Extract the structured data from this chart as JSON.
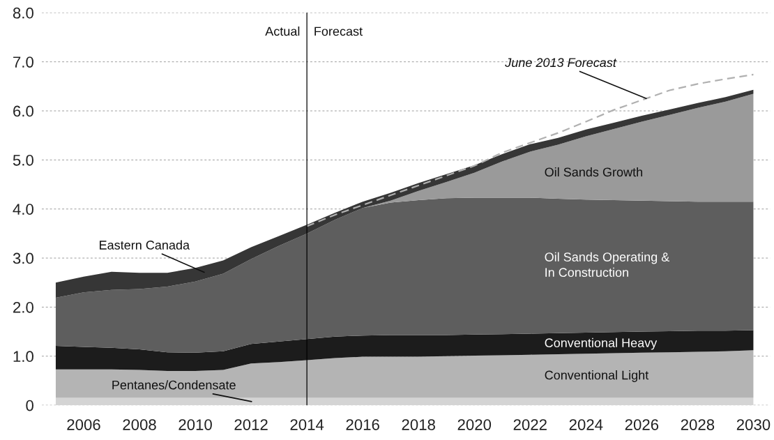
{
  "chart_data": {
    "type": "area",
    "stacked": true,
    "x": [
      2005,
      2006,
      2007,
      2008,
      2009,
      2010,
      2011,
      2012,
      2013,
      2014,
      2015,
      2016,
      2017,
      2018,
      2019,
      2020,
      2021,
      2022,
      2023,
      2024,
      2025,
      2026,
      2027,
      2028,
      2029,
      2030
    ],
    "series": [
      {
        "name": "Pentanes/Condensate",
        "color": "#d4d4d4",
        "values": [
          0.15,
          0.15,
          0.15,
          0.15,
          0.15,
          0.15,
          0.15,
          0.15,
          0.15,
          0.15,
          0.15,
          0.15,
          0.15,
          0.15,
          0.15,
          0.15,
          0.15,
          0.15,
          0.15,
          0.15,
          0.15,
          0.15,
          0.15,
          0.15,
          0.15,
          0.15
        ]
      },
      {
        "name": "Conventional Light",
        "color": "#b4b4b4",
        "values": [
          0.58,
          0.58,
          0.58,
          0.57,
          0.55,
          0.55,
          0.57,
          0.7,
          0.73,
          0.77,
          0.81,
          0.84,
          0.84,
          0.84,
          0.85,
          0.86,
          0.87,
          0.88,
          0.89,
          0.9,
          0.91,
          0.92,
          0.93,
          0.94,
          0.95,
          0.97
        ]
      },
      {
        "name": "Conventional Heavy",
        "color": "#1c1c1c",
        "values": [
          0.48,
          0.46,
          0.44,
          0.42,
          0.38,
          0.37,
          0.38,
          0.4,
          0.42,
          0.43,
          0.44,
          0.43,
          0.44,
          0.44,
          0.43,
          0.43,
          0.43,
          0.43,
          0.43,
          0.43,
          0.43,
          0.43,
          0.43,
          0.43,
          0.42,
          0.41
        ]
      },
      {
        "name": "Oil Sands Operating &\nIn Construction",
        "color": "#5e5e5e",
        "values": [
          0.98,
          1.11,
          1.18,
          1.23,
          1.34,
          1.45,
          1.58,
          1.73,
          1.95,
          2.15,
          2.38,
          2.6,
          2.7,
          2.75,
          2.79,
          2.79,
          2.78,
          2.77,
          2.74,
          2.71,
          2.69,
          2.67,
          2.65,
          2.63,
          2.63,
          2.62
        ]
      },
      {
        "name": "Oil Sands Growth",
        "color": "#9a9a9a",
        "values": [
          0,
          0,
          0,
          0,
          0,
          0,
          0,
          0,
          0,
          0,
          0,
          0,
          0.04,
          0.19,
          0.33,
          0.51,
          0.74,
          0.94,
          1.1,
          1.29,
          1.45,
          1.61,
          1.76,
          1.91,
          2.04,
          2.2
        ]
      },
      {
        "name": "Eastern Canada",
        "color": "#363636",
        "values": [
          0.31,
          0.32,
          0.37,
          0.33,
          0.28,
          0.28,
          0.27,
          0.24,
          0.2,
          0.18,
          0.14,
          0.13,
          0.16,
          0.16,
          0.16,
          0.15,
          0.15,
          0.15,
          0.14,
          0.14,
          0.13,
          0.12,
          0.11,
          0.1,
          0.09,
          0.08
        ]
      },
      {
        "name": "June 2013 Forecast",
        "type": "line",
        "line_style": "dashed",
        "color": "#b0b0b0",
        "x": [
          2014,
          2015,
          2016,
          2017,
          2018,
          2019,
          2020,
          2021,
          2022,
          2023,
          2024,
          2025,
          2026,
          2027,
          2028,
          2029,
          2030
        ],
        "values": [
          3.65,
          3.88,
          4.08,
          4.28,
          4.48,
          4.68,
          4.88,
          5.15,
          5.35,
          5.55,
          5.78,
          6.02,
          6.22,
          6.42,
          6.55,
          6.65,
          6.74
        ]
      }
    ],
    "xlim": [
      2004.5,
      2030.6
    ],
    "xticks": [
      2006,
      2008,
      2010,
      2012,
      2014,
      2016,
      2018,
      2020,
      2022,
      2024,
      2026,
      2028,
      2030
    ],
    "ylim": [
      0,
      8
    ],
    "yticks": [
      0,
      {
        "value": 1,
        "label": "1.0"
      },
      {
        "value": 2,
        "label": "2.0"
      },
      {
        "value": 3,
        "label": "3.0"
      },
      {
        "value": 4,
        "label": "4.0"
      },
      {
        "value": 5,
        "label": "5.0"
      },
      {
        "value": 6,
        "label": "6.0"
      },
      {
        "value": 7,
        "label": "7.0"
      },
      {
        "value": 8,
        "label": "8.0"
      }
    ],
    "grid": "y",
    "legend": false,
    "ref_lines": [
      {
        "axis": "x",
        "value": 2014,
        "color": "#000000"
      }
    ],
    "annotations": [
      {
        "text": "Actual",
        "x": 2014,
        "y": 7.6
      },
      {
        "text": "Forecast",
        "x": 2014,
        "y": 7.6
      }
    ]
  }
}
